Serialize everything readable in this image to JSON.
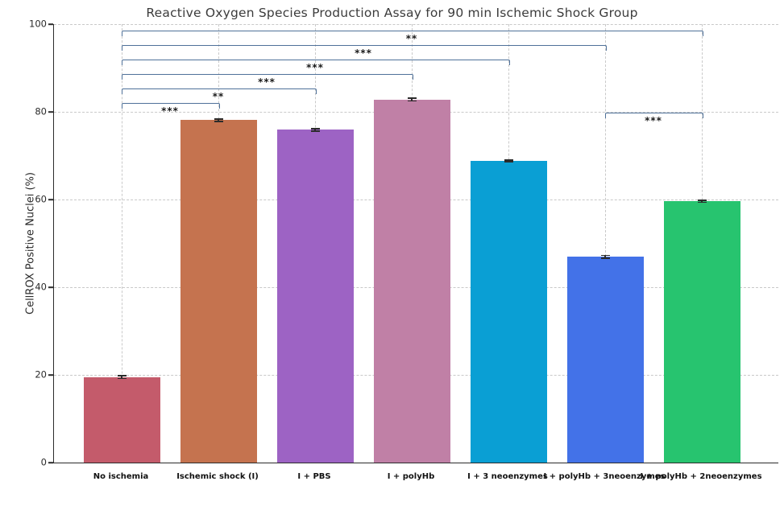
{
  "chart_data": {
    "type": "bar",
    "title": "Reactive Oxygen Species Production Assay for 90 min Ischemic Shock Group",
    "xlabel": "",
    "ylabel": "CellROX Positive Nuclei (%)",
    "ylim": [
      0,
      100
    ],
    "yticks": [
      0,
      20,
      40,
      60,
      80,
      100
    ],
    "grid": "dashed horizontal and vertical gridlines",
    "legend": "none",
    "categories": [
      "No ischemia",
      "Ischemic shock (I)",
      "I + PBS",
      "I + polyHb",
      "I + 3 neoenzymes",
      "I + polyHb + 3neoenzymes",
      "I + polyHb + 2neoenzymes"
    ],
    "values": [
      19.5,
      78.1,
      75.9,
      82.8,
      68.8,
      46.9,
      59.6
    ],
    "errors": [
      0.5,
      0.4,
      0.4,
      0.5,
      0.4,
      0.5,
      0.4
    ],
    "bar_colors": [
      "#c45b6b",
      "#c5734f",
      "#9d63c4",
      "#c080a6",
      "#0a9fd4",
      "#4372e8",
      "#27c46f"
    ],
    "bracket_color": "#4f7199",
    "error_color": "#2b2b2b",
    "significance_brackets": [
      {
        "from": 0,
        "to": 6,
        "label": "**",
        "y": 98.5
      },
      {
        "from": 0,
        "to": 5,
        "label": "***",
        "y": 95.2
      },
      {
        "from": 0,
        "to": 4,
        "label": "***",
        "y": 91.9
      },
      {
        "from": 0,
        "to": 3,
        "label": "***",
        "y": 88.6
      },
      {
        "from": 0,
        "to": 2,
        "label": "**",
        "y": 85.3
      },
      {
        "from": 0,
        "to": 1,
        "label": "***",
        "y": 82.0
      },
      {
        "from": 5,
        "to": 6,
        "label": "***",
        "y": 79.8
      }
    ]
  }
}
